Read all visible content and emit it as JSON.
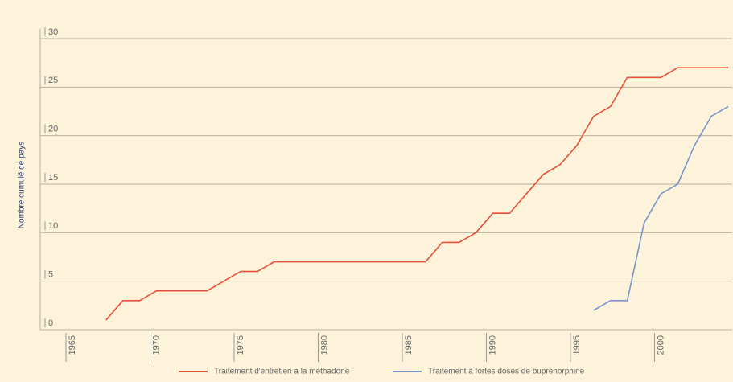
{
  "chart_data": {
    "type": "line",
    "y_label": "Nombre cumulé de pays",
    "x": [
      1967,
      1968,
      1969,
      1970,
      1971,
      1972,
      1973,
      1974,
      1975,
      1976,
      1977,
      1978,
      1979,
      1980,
      1981,
      1982,
      1983,
      1984,
      1985,
      1986,
      1987,
      1988,
      1989,
      1990,
      1991,
      1992,
      1993,
      1994,
      1995,
      1996,
      1997,
      1998,
      1999,
      2000,
      2001,
      2002,
      2003,
      2004
    ],
    "series": [
      {
        "name": "Traitement d'entretien à la méthadone",
        "color": "#e8503a",
        "values": [
          1,
          3,
          3,
          4,
          4,
          4,
          4,
          5,
          6,
          6,
          7,
          7,
          7,
          7,
          7,
          7,
          7,
          7,
          7,
          7,
          9,
          9,
          10,
          12,
          12,
          14,
          16,
          17,
          19,
          22,
          23,
          26,
          26,
          26,
          27,
          27,
          27,
          27
        ]
      },
      {
        "name": "Traitement à fortes doses de buprénorphine",
        "color": "#7b93cc",
        "values": [
          null,
          null,
          null,
          null,
          null,
          null,
          null,
          null,
          null,
          null,
          null,
          null,
          null,
          null,
          null,
          null,
          null,
          null,
          null,
          null,
          null,
          null,
          null,
          null,
          null,
          null,
          null,
          null,
          null,
          2,
          3,
          3,
          11,
          14,
          15,
          19,
          22,
          23
        ]
      }
    ],
    "xlim": [
      1965,
      2004
    ],
    "xticks": [
      1965,
      1970,
      1975,
      1980,
      1985,
      1990,
      1995,
      2000
    ],
    "ylim": [
      0,
      30
    ],
    "yticks": [
      0,
      5,
      10,
      15,
      20,
      25,
      30
    ],
    "grid": true
  }
}
